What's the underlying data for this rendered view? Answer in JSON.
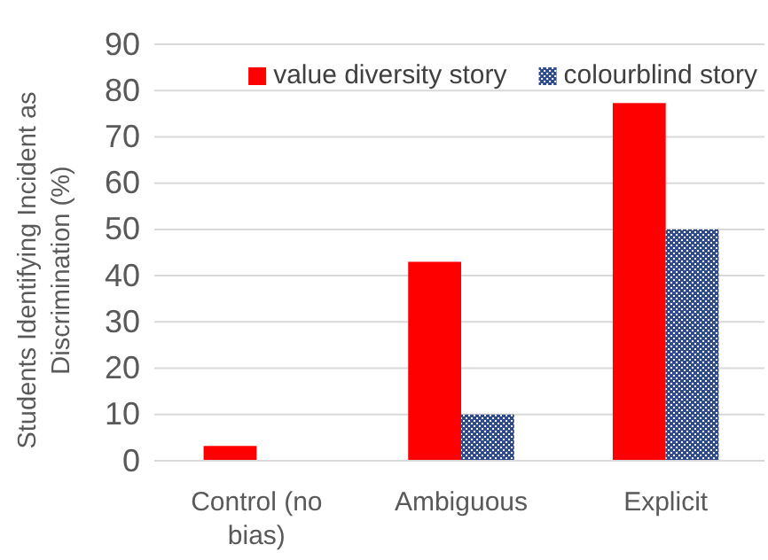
{
  "chart_data": {
    "type": "bar",
    "ylabel": "Students Identifying Incident as Discrimination (%)",
    "categories": [
      "Control (no bias)",
      "Ambiguous",
      "Explicit"
    ],
    "series": [
      {
        "name": "value diversity story",
        "color": "#ff0000",
        "values": [
          3.2,
          43,
          77.3
        ]
      },
      {
        "name": "colourblind story",
        "color": "#2f4b8c",
        "values": [
          0,
          10,
          50
        ]
      }
    ],
    "ylim": [
      0,
      90
    ],
    "yticks": [
      0,
      10,
      20,
      30,
      40,
      50,
      60,
      70,
      80,
      90
    ],
    "grid": "y",
    "legend": "top right"
  }
}
